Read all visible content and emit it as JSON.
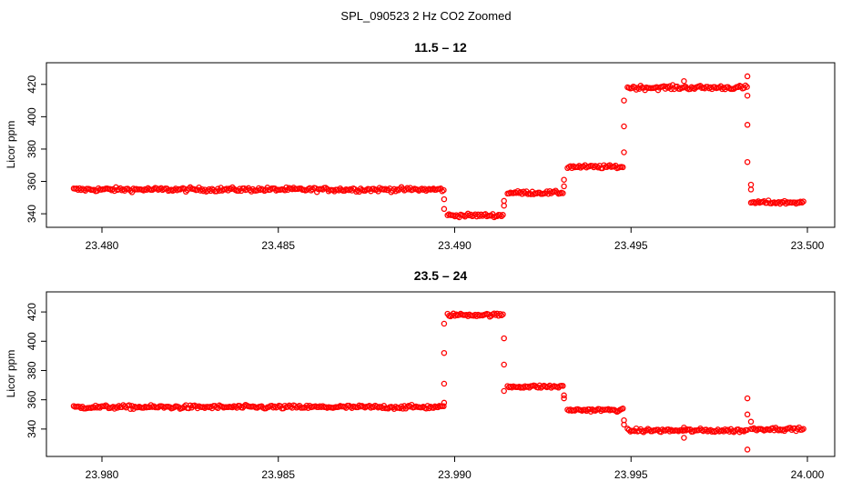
{
  "figure": {
    "suptitle": "SPL_090523  2 Hz CO2 Zoomed"
  },
  "point_color": "#ff0000",
  "chart_data": [
    {
      "type": "scatter",
      "title": "11.5 – 12",
      "xlabel": "",
      "ylabel": "Licor ppm",
      "xlim": [
        23.4792,
        23.5
      ],
      "ylim": [
        335,
        430
      ],
      "xticks": [
        23.48,
        23.485,
        23.49,
        23.495,
        23.5
      ],
      "xtick_labels": [
        "23.480",
        "23.485",
        "23.490",
        "23.495",
        "23.500"
      ],
      "yticks": [
        340,
        360,
        380,
        400,
        420
      ],
      "ytick_labels": [
        "340",
        "360",
        "380",
        "400",
        "420"
      ],
      "segments": [
        {
          "x0": 23.4792,
          "x1": 23.4897,
          "y": 355,
          "noise": 1.2
        },
        {
          "x0": 23.4898,
          "x1": 23.4914,
          "y": 339,
          "noise": 1.0
        },
        {
          "x0": 23.4915,
          "x1": 23.4931,
          "y": 353,
          "noise": 1.0
        },
        {
          "x0": 23.4932,
          "x1": 23.4948,
          "y": 369,
          "noise": 1.0
        },
        {
          "x0": 23.4949,
          "x1": 23.4983,
          "y": 418,
          "noise": 1.2
        },
        {
          "x0": 23.4984,
          "x1": 23.4999,
          "y": 347,
          "noise": 1.0
        }
      ],
      "outliers": [
        {
          "x": 23.4897,
          "y": 349
        },
        {
          "x": 23.4897,
          "y": 343
        },
        {
          "x": 23.4914,
          "y": 345
        },
        {
          "x": 23.4914,
          "y": 348
        },
        {
          "x": 23.4931,
          "y": 361
        },
        {
          "x": 23.4931,
          "y": 357
        },
        {
          "x": 23.4948,
          "y": 378
        },
        {
          "x": 23.4948,
          "y": 394
        },
        {
          "x": 23.4948,
          "y": 410
        },
        {
          "x": 23.4983,
          "y": 425
        },
        {
          "x": 23.4983,
          "y": 413
        },
        {
          "x": 23.4983,
          "y": 395
        },
        {
          "x": 23.4983,
          "y": 372
        },
        {
          "x": 23.4984,
          "y": 358
        },
        {
          "x": 23.4984,
          "y": 355
        },
        {
          "x": 23.4965,
          "y": 422
        }
      ]
    },
    {
      "type": "scatter",
      "title": "23.5 – 24",
      "xlabel": "",
      "ylabel": "Licor ppm",
      "xlim": [
        23.9792,
        24.0
      ],
      "ylim": [
        325,
        430
      ],
      "xticks": [
        23.98,
        23.985,
        23.99,
        23.995,
        24.0
      ],
      "xtick_labels": [
        "23.980",
        "23.985",
        "23.990",
        "23.995",
        "24.000"
      ],
      "yticks": [
        340,
        360,
        380,
        400,
        420
      ],
      "ytick_labels": [
        "340",
        "360",
        "380",
        "400",
        "420"
      ],
      "segments": [
        {
          "x0": 23.9792,
          "x1": 23.9897,
          "y": 355,
          "noise": 1.2
        },
        {
          "x0": 23.9898,
          "x1": 23.9914,
          "y": 418,
          "noise": 1.0
        },
        {
          "x0": 23.9915,
          "x1": 23.9931,
          "y": 369,
          "noise": 1.0
        },
        {
          "x0": 23.9932,
          "x1": 23.9948,
          "y": 353,
          "noise": 1.0
        },
        {
          "x0": 23.9949,
          "x1": 23.9983,
          "y": 339,
          "noise": 1.2
        },
        {
          "x0": 23.9984,
          "x1": 23.9999,
          "y": 340,
          "noise": 1.0
        }
      ],
      "outliers": [
        {
          "x": 23.9897,
          "y": 358
        },
        {
          "x": 23.9897,
          "y": 371
        },
        {
          "x": 23.9897,
          "y": 392
        },
        {
          "x": 23.9897,
          "y": 412
        },
        {
          "x": 23.9914,
          "y": 402
        },
        {
          "x": 23.9914,
          "y": 384
        },
        {
          "x": 23.9914,
          "y": 366
        },
        {
          "x": 23.9931,
          "y": 363
        },
        {
          "x": 23.9931,
          "y": 361
        },
        {
          "x": 23.9948,
          "y": 346
        },
        {
          "x": 23.9948,
          "y": 343
        },
        {
          "x": 23.9965,
          "y": 334
        },
        {
          "x": 23.9965,
          "y": 341
        },
        {
          "x": 23.9983,
          "y": 361
        },
        {
          "x": 23.9983,
          "y": 350
        },
        {
          "x": 23.9983,
          "y": 326
        },
        {
          "x": 23.9984,
          "y": 345
        }
      ]
    }
  ]
}
